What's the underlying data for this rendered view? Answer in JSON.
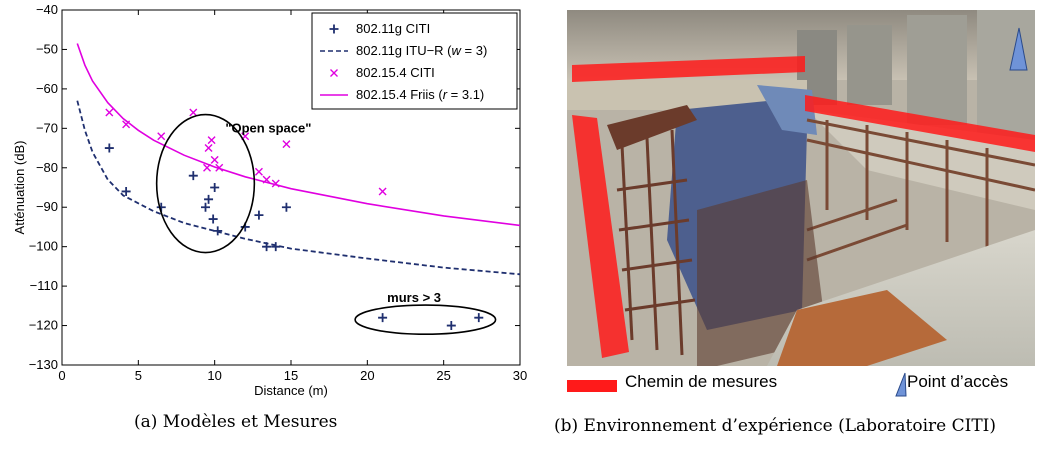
{
  "chart_data": {
    "type": "scatter",
    "xlabel": "Distance (m)",
    "ylabel": "Atténuation (dB)",
    "xlim": [
      0,
      30
    ],
    "ylim": [
      -130,
      -40
    ],
    "xticks": [
      0,
      5,
      10,
      15,
      20,
      25,
      30
    ],
    "yticks": [
      -40,
      -50,
      -60,
      -70,
      -80,
      -90,
      -100,
      -110,
      -120,
      -130
    ],
    "grid": false,
    "legend_position": "top-right",
    "series": [
      {
        "name": "802.11g CITI",
        "kind": "markers",
        "marker": "plus",
        "color": "#1f2f6f",
        "points": [
          [
            3.1,
            -75
          ],
          [
            4.2,
            -86
          ],
          [
            6.5,
            -90
          ],
          [
            8.6,
            -82
          ],
          [
            9.4,
            -90
          ],
          [
            9.6,
            -88
          ],
          [
            9.9,
            -93
          ],
          [
            10.0,
            -85
          ],
          [
            10.2,
            -96
          ],
          [
            12.0,
            -95
          ],
          [
            12.9,
            -92
          ],
          [
            13.4,
            -100
          ],
          [
            14.0,
            -100
          ],
          [
            14.7,
            -90
          ],
          [
            21.0,
            -118
          ],
          [
            25.5,
            -120
          ],
          [
            27.3,
            -118
          ]
        ]
      },
      {
        "name": "802.11g ITU−R (w = 3)",
        "name_parts": [
          "802.11g ITU−R (",
          "w",
          " = 3)"
        ],
        "kind": "curve",
        "style": "dashed",
        "color": "#1f2f6f",
        "points": [
          [
            1,
            -63
          ],
          [
            1.5,
            -70.5
          ],
          [
            2,
            -76
          ],
          [
            3,
            -83
          ],
          [
            4,
            -87
          ],
          [
            5,
            -89
          ],
          [
            6,
            -91
          ],
          [
            8,
            -94
          ],
          [
            10,
            -96
          ],
          [
            12,
            -98
          ],
          [
            15,
            -100.5
          ],
          [
            20,
            -103
          ],
          [
            25,
            -105.3
          ],
          [
            30,
            -107
          ]
        ]
      },
      {
        "name": "802.15.4 CITI",
        "kind": "markers",
        "marker": "cross",
        "color": "#e000e0",
        "points": [
          [
            3.1,
            -66
          ],
          [
            4.2,
            -69
          ],
          [
            6.5,
            -72
          ],
          [
            8.6,
            -66
          ],
          [
            9.5,
            -80
          ],
          [
            9.6,
            -75
          ],
          [
            9.8,
            -73
          ],
          [
            10.0,
            -78
          ],
          [
            10.3,
            -80
          ],
          [
            12.0,
            -72
          ],
          [
            12.9,
            -81
          ],
          [
            13.4,
            -83
          ],
          [
            14.0,
            -84
          ],
          [
            14.7,
            -74
          ],
          [
            21.0,
            -86
          ]
        ]
      },
      {
        "name": "802.15.4 Friis (r = 3.1)",
        "name_parts": [
          "802.15.4 Friis (",
          "r",
          " = 3.1)"
        ],
        "kind": "curve",
        "style": "solid",
        "color": "#e000e0",
        "points": [
          [
            1,
            -48.5
          ],
          [
            1.5,
            -54
          ],
          [
            2,
            -58
          ],
          [
            3,
            -63.5
          ],
          [
            4,
            -67.5
          ],
          [
            5,
            -70.5
          ],
          [
            6,
            -73
          ],
          [
            8,
            -76.8
          ],
          [
            10,
            -79.8
          ],
          [
            12,
            -82.3
          ],
          [
            15,
            -85.3
          ],
          [
            20,
            -89.1
          ],
          [
            25,
            -92.2
          ],
          [
            30,
            -94.6
          ]
        ]
      }
    ],
    "annotations": [
      {
        "text": "\"Open space\"",
        "x": 10.7,
        "y": -71
      },
      {
        "text": "murs > 3",
        "x": 21.3,
        "y": -114
      }
    ],
    "ellipses": [
      {
        "cx": 9.4,
        "cy": -84,
        "rx": 3.2,
        "ry": 17.5
      },
      {
        "cx": 23.8,
        "cy": -118.5,
        "rx": 4.6,
        "ry": 3.7
      }
    ]
  },
  "figure": {
    "caption_a": "(a) Modèles et Mesures",
    "caption_b": "(b) Environnement d’expérience (Laboratoire CITI)",
    "photo_legend": {
      "path_label": "Chemin de mesures",
      "path_color": "#ff1a1a",
      "ap_label": "Point d’accès",
      "ap_color": "#6f93d8"
    }
  }
}
